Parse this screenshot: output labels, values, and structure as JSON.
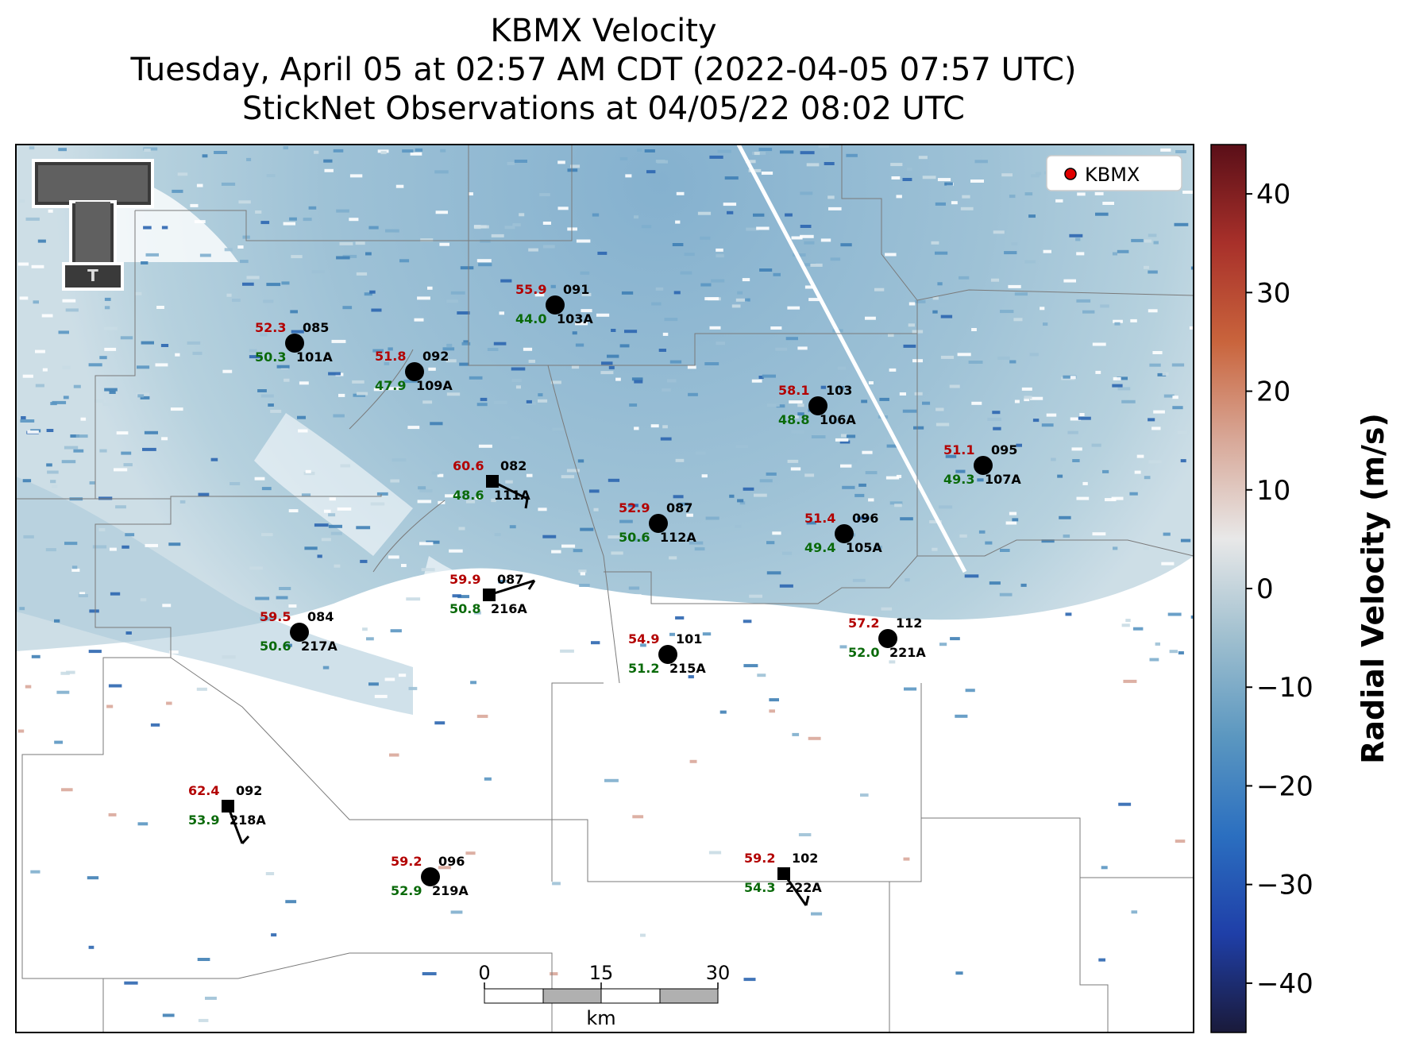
{
  "title": {
    "line1": "KBMX Velocity",
    "line2": "Tuesday, April 05 at 02:57 AM CDT (2022-04-05 07:57 UTC)",
    "line3": "StickNet Observations at 04/05/22 08:02 UTC"
  },
  "legend": {
    "label": "KBMX",
    "marker_color": "#e00000"
  },
  "colorbar": {
    "label": "Radial Velocity (m/s)",
    "ticks": [
      "40",
      "30",
      "20",
      "10",
      "0",
      "−10",
      "−20",
      "−30",
      "−40"
    ],
    "range": [
      -45,
      45
    ],
    "colors": [
      "#1a1a3a",
      "#1f3fa8",
      "#2b6fc0",
      "#5b97c0",
      "#9fbfcf",
      "#e8e8e8",
      "#d8a898",
      "#c9643c",
      "#a8302a",
      "#5a0f18"
    ]
  },
  "scale_bar": {
    "labels": [
      "0",
      "15",
      "30"
    ],
    "unit": "km"
  },
  "logo": {
    "text": "T"
  },
  "stations": [
    {
      "id": "101A",
      "gust": "52.3",
      "wind": "50.3",
      "dir": "085",
      "marker": "circle"
    },
    {
      "id": "109A",
      "gust": "51.8",
      "wind": "47.9",
      "dir": "092",
      "marker": "circle"
    },
    {
      "id": "103A",
      "gust": "55.9",
      "wind": "44.0",
      "dir": "091",
      "marker": "circle"
    },
    {
      "id": "106A",
      "gust": "58.1",
      "wind": "48.8",
      "dir": "103",
      "marker": "circle"
    },
    {
      "id": "107A",
      "gust": "51.1",
      "wind": "49.3",
      "dir": "095",
      "marker": "circle"
    },
    {
      "id": "111A",
      "gust": "60.6",
      "wind": "48.6",
      "dir": "082",
      "marker": "square"
    },
    {
      "id": "112A",
      "gust": "52.9",
      "wind": "50.6",
      "dir": "087",
      "marker": "circle"
    },
    {
      "id": "105A",
      "gust": "51.4",
      "wind": "49.4",
      "dir": "096",
      "marker": "circle"
    },
    {
      "id": "216A",
      "gust": "59.9",
      "wind": "50.8",
      "dir": "087",
      "marker": "square"
    },
    {
      "id": "217A",
      "gust": "59.5",
      "wind": "50.6",
      "dir": "084",
      "marker": "circle"
    },
    {
      "id": "215A",
      "gust": "54.9",
      "wind": "51.2",
      "dir": "101",
      "marker": "circle"
    },
    {
      "id": "221A",
      "gust": "57.2",
      "wind": "52.0",
      "dir": "112",
      "marker": "circle"
    },
    {
      "id": "218A",
      "gust": "62.4",
      "wind": "53.9",
      "dir": "092",
      "marker": "square"
    },
    {
      "id": "219A",
      "gust": "59.2",
      "wind": "52.9",
      "dir": "096",
      "marker": "circle"
    },
    {
      "id": "222A",
      "gust": "59.2",
      "wind": "54.3",
      "dir": "102",
      "marker": "square"
    }
  ]
}
